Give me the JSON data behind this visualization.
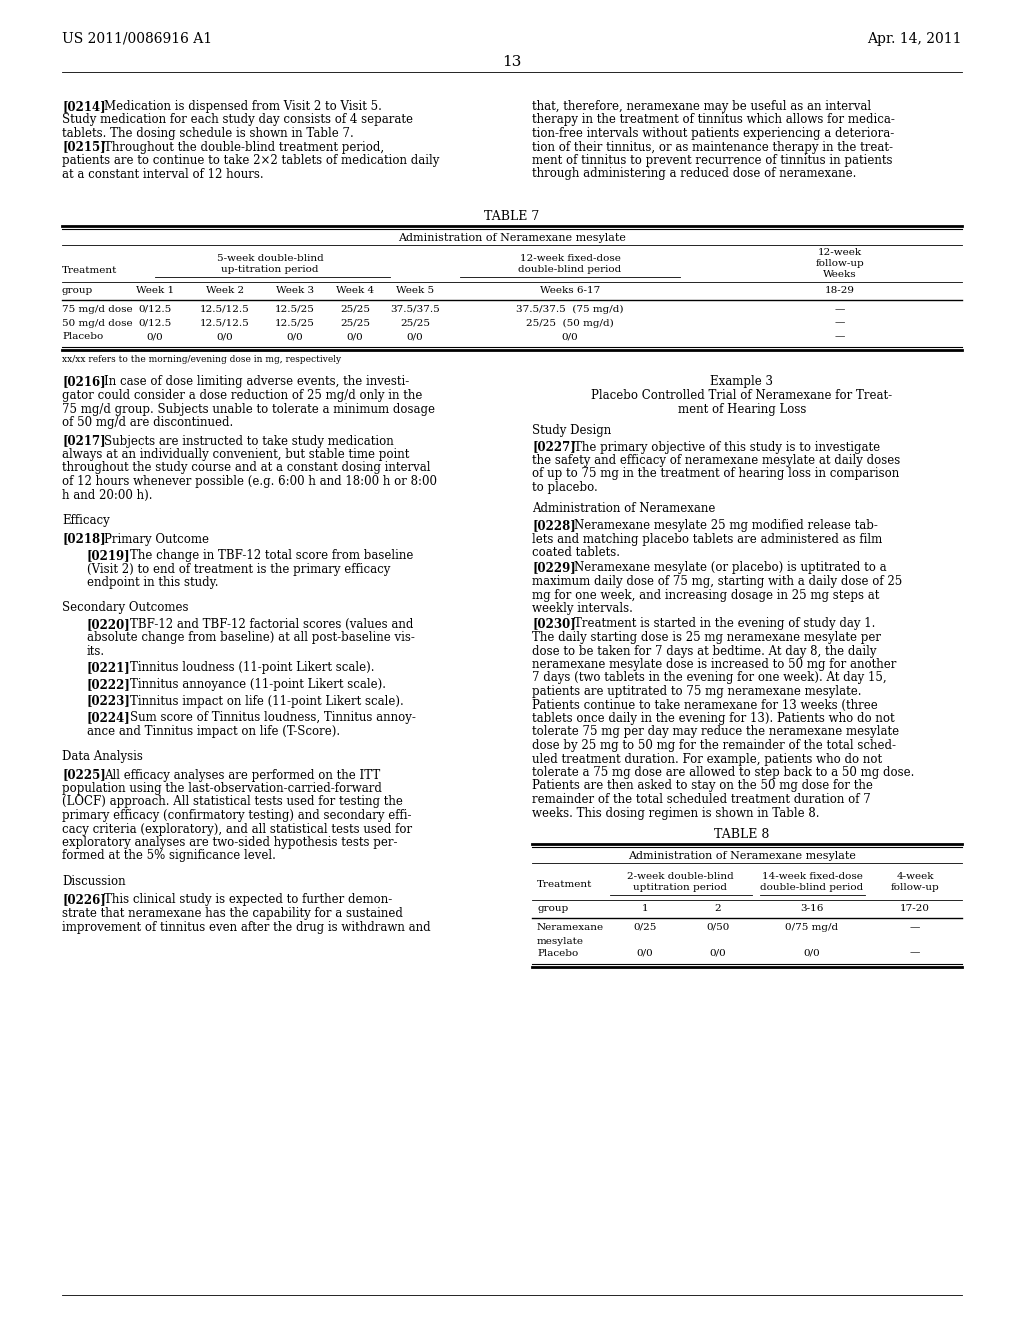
{
  "page_number": "13",
  "header_left": "US 2011/0086916 A1",
  "header_right": "Apr. 14, 2011",
  "background_color": "#ffffff"
}
